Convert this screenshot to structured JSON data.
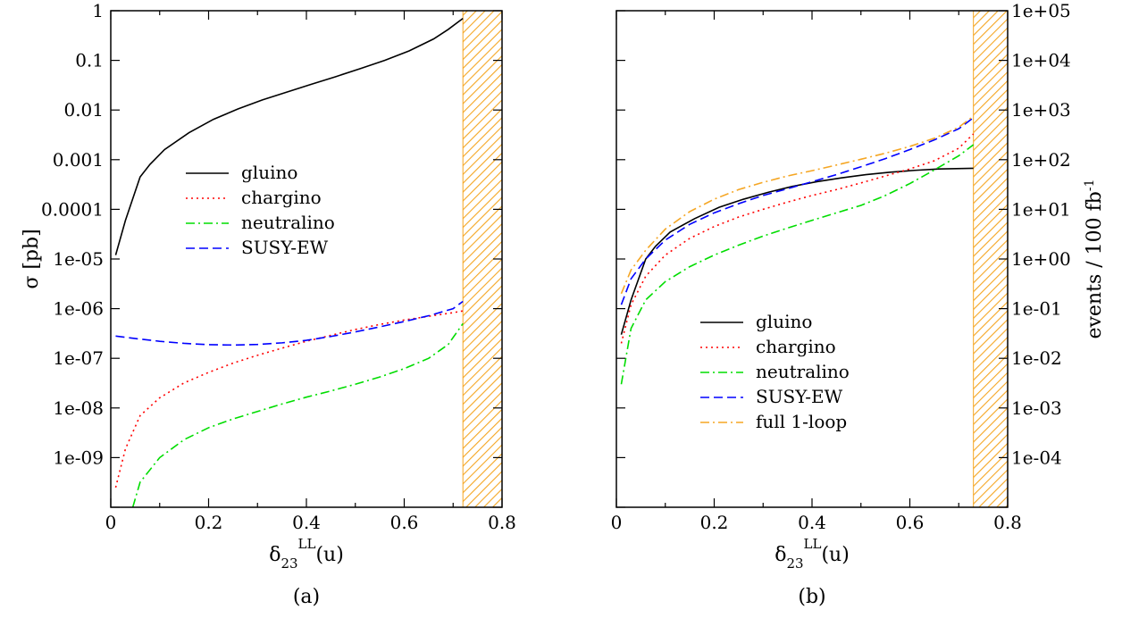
{
  "chart_data": [
    {
      "type": "line",
      "panel_label": "(a)",
      "xlabel": "δ",
      "xlabel_sub": "23",
      "xlabel_sup": "LL",
      "xlabel_suffix": "(u)",
      "ylabel": "σ [pb]",
      "xlim": [
        0,
        0.8
      ],
      "ylim": [
        1e-10,
        1
      ],
      "yscale": "log",
      "x_ticks": [
        "0",
        "0.2",
        "0.4",
        "0.6",
        "0.8"
      ],
      "y_ticks": [
        "1",
        "0.1",
        "0.01",
        "0.001",
        "0.0001",
        "1e-05",
        "1e-06",
        "1e-07",
        "1e-08",
        "1e-09"
      ],
      "excluded_region": [
        0.72,
        0.8
      ],
      "excluded_color": "#f5a623",
      "legend_position": "center",
      "series": [
        {
          "name": "gluino",
          "color": "#000000",
          "dash": "",
          "points": [
            [
              0.01,
              1.2e-05
            ],
            [
              0.03,
              6e-05
            ],
            [
              0.06,
              0.00045
            ],
            [
              0.08,
              0.0008
            ],
            [
              0.11,
              0.0016
            ],
            [
              0.16,
              0.0035
            ],
            [
              0.21,
              0.0065
            ],
            [
              0.26,
              0.0105
            ],
            [
              0.31,
              0.016
            ],
            [
              0.36,
              0.023
            ],
            [
              0.41,
              0.033
            ],
            [
              0.46,
              0.047
            ],
            [
              0.51,
              0.068
            ],
            [
              0.56,
              0.1
            ],
            [
              0.61,
              0.155
            ],
            [
              0.66,
              0.27
            ],
            [
              0.69,
              0.42
            ],
            [
              0.72,
              0.7
            ]
          ]
        },
        {
          "name": "chargino",
          "color": "#ff0000",
          "dash": "2,4",
          "points": [
            [
              0.01,
              2.5e-10
            ],
            [
              0.03,
              1.5e-09
            ],
            [
              0.06,
              7e-09
            ],
            [
              0.1,
              1.6e-08
            ],
            [
              0.15,
              3.2e-08
            ],
            [
              0.2,
              5.2e-08
            ],
            [
              0.25,
              8e-08
            ],
            [
              0.3,
              1.15e-07
            ],
            [
              0.35,
              1.6e-07
            ],
            [
              0.4,
              2.2e-07
            ],
            [
              0.45,
              2.9e-07
            ],
            [
              0.5,
              3.8e-07
            ],
            [
              0.55,
              4.8e-07
            ],
            [
              0.6,
              5.9e-07
            ],
            [
              0.65,
              7e-07
            ],
            [
              0.7,
              8.3e-07
            ],
            [
              0.72,
              9e-07
            ]
          ]
        },
        {
          "name": "neutralino",
          "color": "#00dd00",
          "dash": "10,4,2,4",
          "points": [
            [
              0.045,
              1e-10
            ],
            [
              0.06,
              3.2e-10
            ],
            [
              0.1,
              1e-09
            ],
            [
              0.15,
              2.3e-09
            ],
            [
              0.2,
              4e-09
            ],
            [
              0.25,
              6e-09
            ],
            [
              0.3,
              8.5e-09
            ],
            [
              0.35,
              1.2e-08
            ],
            [
              0.4,
              1.65e-08
            ],
            [
              0.45,
              2.2e-08
            ],
            [
              0.5,
              3e-08
            ],
            [
              0.55,
              4.2e-08
            ],
            [
              0.6,
              6.2e-08
            ],
            [
              0.65,
              1e-07
            ],
            [
              0.69,
              1.9e-07
            ],
            [
              0.72,
              5e-07
            ]
          ]
        },
        {
          "name": "SUSY-EW",
          "color": "#0000ff",
          "dash": "10,5",
          "points": [
            [
              0.01,
              2.8e-07
            ],
            [
              0.05,
              2.5e-07
            ],
            [
              0.1,
              2.2e-07
            ],
            [
              0.15,
              2e-07
            ],
            [
              0.2,
              1.88e-07
            ],
            [
              0.25,
              1.85e-07
            ],
            [
              0.3,
              1.9e-07
            ],
            [
              0.35,
              2.05e-07
            ],
            [
              0.4,
              2.3e-07
            ],
            [
              0.45,
              2.75e-07
            ],
            [
              0.5,
              3.4e-07
            ],
            [
              0.55,
              4.3e-07
            ],
            [
              0.6,
              5.5e-07
            ],
            [
              0.65,
              7.2e-07
            ],
            [
              0.7,
              1e-06
            ],
            [
              0.72,
              1.4e-06
            ]
          ]
        }
      ]
    },
    {
      "type": "line",
      "panel_label": "(b)",
      "xlabel": "δ",
      "xlabel_sub": "23",
      "xlabel_sup": "LL",
      "xlabel_suffix": "(u)",
      "ylabel": "events / 100 fb",
      "ylabel_sup": "-1",
      "xlim": [
        0,
        0.8
      ],
      "ylim": [
        1e-05,
        100000.0
      ],
      "yscale": "log",
      "x_ticks": [
        "0",
        "0.2",
        "0.4",
        "0.6",
        "0.8"
      ],
      "y_ticks": [
        "1e+05",
        "1e+04",
        "1e+03",
        "1e+02",
        "1e+01",
        "1e+00",
        "1e-01",
        "1e-02",
        "1e-03",
        "1e-04"
      ],
      "excluded_region": [
        0.73,
        0.8
      ],
      "excluded_color": "#f5a623",
      "legend_position": "bottom-center",
      "series": [
        {
          "name": "gluino",
          "color": "#000000",
          "dash": "",
          "points": [
            [
              0.01,
              0.03
            ],
            [
              0.03,
              0.15
            ],
            [
              0.06,
              1.0
            ],
            [
              0.08,
              1.8
            ],
            [
              0.11,
              3.5
            ],
            [
              0.16,
              6.5
            ],
            [
              0.21,
              11
            ],
            [
              0.26,
              16
            ],
            [
              0.31,
              22
            ],
            [
              0.36,
              29
            ],
            [
              0.41,
              36
            ],
            [
              0.46,
              43
            ],
            [
              0.51,
              50
            ],
            [
              0.56,
              56
            ],
            [
              0.61,
              61
            ],
            [
              0.66,
              65
            ],
            [
              0.73,
              67
            ]
          ]
        },
        {
          "name": "chargino",
          "color": "#ff0000",
          "dash": "2,4",
          "points": [
            [
              0.01,
              0.02
            ],
            [
              0.03,
              0.12
            ],
            [
              0.06,
              0.45
            ],
            [
              0.1,
              1.2
            ],
            [
              0.15,
              2.6
            ],
            [
              0.2,
              4.5
            ],
            [
              0.25,
              7
            ],
            [
              0.3,
              10
            ],
            [
              0.35,
              14
            ],
            [
              0.4,
              19
            ],
            [
              0.45,
              25
            ],
            [
              0.5,
              34
            ],
            [
              0.55,
              47
            ],
            [
              0.6,
              65
            ],
            [
              0.65,
              95
            ],
            [
              0.7,
              170
            ],
            [
              0.73,
              330
            ]
          ]
        },
        {
          "name": "neutralino",
          "color": "#00dd00",
          "dash": "10,4,2,4",
          "points": [
            [
              0.01,
              0.003
            ],
            [
              0.03,
              0.04
            ],
            [
              0.06,
              0.15
            ],
            [
              0.1,
              0.35
            ],
            [
              0.15,
              0.7
            ],
            [
              0.2,
              1.2
            ],
            [
              0.25,
              1.9
            ],
            [
              0.3,
              2.9
            ],
            [
              0.35,
              4.2
            ],
            [
              0.4,
              6
            ],
            [
              0.45,
              8.5
            ],
            [
              0.5,
              12
            ],
            [
              0.55,
              19
            ],
            [
              0.6,
              33
            ],
            [
              0.65,
              62
            ],
            [
              0.7,
              120
            ],
            [
              0.73,
              200
            ]
          ]
        },
        {
          "name": "SUSY-EW",
          "color": "#0000ff",
          "dash": "10,5",
          "points": [
            [
              0.01,
              0.12
            ],
            [
              0.03,
              0.4
            ],
            [
              0.06,
              1.0
            ],
            [
              0.1,
              2.4
            ],
            [
              0.15,
              5
            ],
            [
              0.2,
              8.5
            ],
            [
              0.25,
              13
            ],
            [
              0.3,
              19
            ],
            [
              0.35,
              26
            ],
            [
              0.4,
              36
            ],
            [
              0.45,
              50
            ],
            [
              0.5,
              72
            ],
            [
              0.55,
              105
            ],
            [
              0.6,
              160
            ],
            [
              0.65,
              250
            ],
            [
              0.7,
              420
            ],
            [
              0.73,
              700
            ]
          ]
        },
        {
          "name": "full 1-loop",
          "color": "#f5a623",
          "dash": "10,4,2,4",
          "points": [
            [
              0.01,
              0.2
            ],
            [
              0.03,
              0.6
            ],
            [
              0.06,
              1.5
            ],
            [
              0.1,
              4
            ],
            [
              0.15,
              9
            ],
            [
              0.2,
              16
            ],
            [
              0.25,
              25
            ],
            [
              0.3,
              35
            ],
            [
              0.35,
              47
            ],
            [
              0.4,
              60
            ],
            [
              0.45,
              78
            ],
            [
              0.5,
              102
            ],
            [
              0.55,
              135
            ],
            [
              0.6,
              185
            ],
            [
              0.65,
              270
            ],
            [
              0.7,
              450
            ],
            [
              0.73,
              750
            ]
          ]
        }
      ]
    }
  ]
}
